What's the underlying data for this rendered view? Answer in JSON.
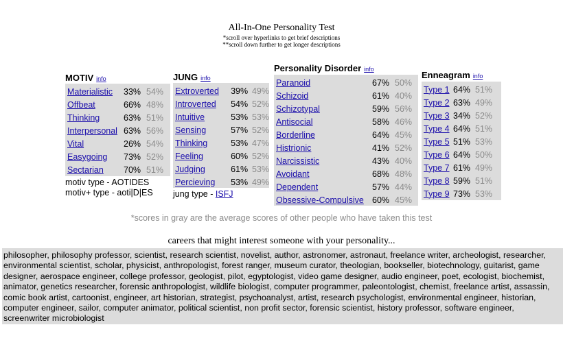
{
  "header": {
    "title": "All-In-One Personality Test",
    "note1": "*scroll over hyperlinks to get brief descriptions",
    "note2": "**scroll down further to get longer descriptions"
  },
  "motiv": {
    "title": "MOTIV",
    "info": "info",
    "rows": [
      {
        "label": "Materialistic",
        "score": "33%",
        "avg": "54%"
      },
      {
        "label": "Offbeat",
        "score": "66%",
        "avg": "48%"
      },
      {
        "label": "Thinking",
        "score": "63%",
        "avg": "51%"
      },
      {
        "label": "Interpersonal",
        "score": "63%",
        "avg": "56%"
      },
      {
        "label": "Vital",
        "score": "26%",
        "avg": "54%"
      },
      {
        "label": "Easygoing",
        "score": "73%",
        "avg": "52%"
      },
      {
        "label": "Sectarian",
        "score": "70%",
        "avg": "51%"
      }
    ],
    "type_line": "motiv type - AOTIDES",
    "plus_line": "motiv+ type - aoti|D|ES"
  },
  "jung": {
    "title": "JUNG",
    "info": "info",
    "rows": [
      {
        "label": "Extroverted",
        "score": "39%",
        "avg": "49%"
      },
      {
        "label": "Introverted",
        "score": "54%",
        "avg": "52%"
      },
      {
        "label": "Intuitive",
        "score": "53%",
        "avg": "53%"
      },
      {
        "label": "Sensing",
        "score": "57%",
        "avg": "52%"
      },
      {
        "label": "Thinking",
        "score": "53%",
        "avg": "47%"
      },
      {
        "label": "Feeling",
        "score": "60%",
        "avg": "52%"
      },
      {
        "label": "Judging",
        "score": "61%",
        "avg": "53%"
      },
      {
        "label": "Percieving",
        "score": "53%",
        "avg": "49%"
      }
    ],
    "type_prefix": "jung type - ",
    "type_value": "ISFJ"
  },
  "pd": {
    "title": "Personality Disorder",
    "info": "info",
    "rows": [
      {
        "label": "Paranoid",
        "score": "67%",
        "avg": "50%"
      },
      {
        "label": "Schizoid",
        "score": "61%",
        "avg": "40%"
      },
      {
        "label": "Schizotypal",
        "score": "59%",
        "avg": "56%"
      },
      {
        "label": "Antisocial",
        "score": "58%",
        "avg": "46%"
      },
      {
        "label": "Borderline",
        "score": "64%",
        "avg": "45%"
      },
      {
        "label": "Histrionic",
        "score": "41%",
        "avg": "52%"
      },
      {
        "label": "Narcissistic",
        "score": "43%",
        "avg": "40%"
      },
      {
        "label": "Avoidant",
        "score": "68%",
        "avg": "48%"
      },
      {
        "label": "Dependent",
        "score": "57%",
        "avg": "44%"
      },
      {
        "label": "Obsessive-Compulsive",
        "score": "60%",
        "avg": "45%"
      }
    ]
  },
  "enneagram": {
    "title": "Enneagram",
    "info": "info",
    "rows": [
      {
        "label": "Type 1",
        "score": "64%",
        "avg": "51%"
      },
      {
        "label": "Type 2",
        "score": "63%",
        "avg": "49%"
      },
      {
        "label": "Type 3",
        "score": "34%",
        "avg": "52%"
      },
      {
        "label": "Type 4",
        "score": "64%",
        "avg": "51%"
      },
      {
        "label": "Type 5",
        "score": "51%",
        "avg": "53%"
      },
      {
        "label": "Type 6",
        "score": "64%",
        "avg": "50%"
      },
      {
        "label": "Type 7",
        "score": "61%",
        "avg": "49%"
      },
      {
        "label": "Type 8",
        "score": "59%",
        "avg": "51%"
      },
      {
        "label": "Type 9",
        "score": "73%",
        "avg": "53%"
      }
    ]
  },
  "gray_note": "*scores in gray are the average scores of other people who have taken this test",
  "careers": {
    "title": "careers that might interest someone with your personality...",
    "text": "philosopher, philosophy professor, scientist, research scientist, novelist, author, astronomer, astronaut, freelance writer, archeologist, researcher, environmental scientist, scholar, physicist, anthropologist, forest ranger, museum curator, theologian, bookseller, biotechnology, guitarist, game designer, aerospace engineer, college professor, geologist, pilot, egyptologist, video game designer, audio engineer, poet, ecologist, biochemist, animator, genetics researcher, forensic anthropologist, wildlife biologist, computer programmer, paleontologist, chemist, freelance artist, assassin, comic book artist, cartoonist, engineer, art historian, strategist, psychoanalyst, artist, research psychologist, environmental engineer, historian, computer engineer, sailor, computer animator, political scientist, non profit sector, forensic scientist, history professor, software engineer, screenwriter microbiologist"
  }
}
